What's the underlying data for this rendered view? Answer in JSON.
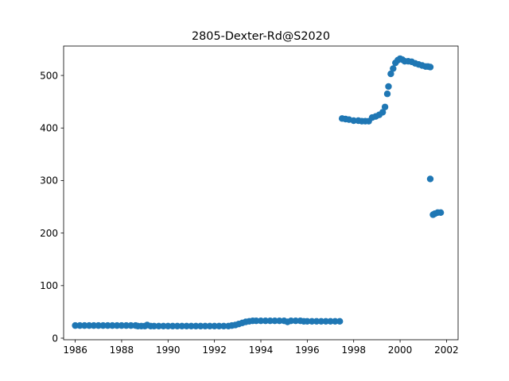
{
  "chart_data": {
    "type": "scatter",
    "title": "2805-Dexter-Rd@S2020",
    "xlabel": "",
    "ylabel": "",
    "xlim": [
      1985.5,
      2002.5
    ],
    "ylim": [
      -3,
      556
    ],
    "x_ticks": [
      "1986",
      "1988",
      "1990",
      "1992",
      "1994",
      "1996",
      "1998",
      "2000",
      "2002"
    ],
    "y_ticks": [
      "0",
      "100",
      "200",
      "300",
      "400",
      "500"
    ],
    "grid": false,
    "legend": "none",
    "marker_color": "#1f77b4",
    "series": [
      {
        "points": [
          [
            1986.0,
            24
          ],
          [
            1986.2,
            24
          ],
          [
            1986.4,
            24
          ],
          [
            1986.6,
            24
          ],
          [
            1986.8,
            24
          ],
          [
            1987.0,
            24
          ],
          [
            1987.2,
            24
          ],
          [
            1987.4,
            24
          ],
          [
            1987.6,
            24
          ],
          [
            1987.8,
            24
          ],
          [
            1988.0,
            24
          ],
          [
            1988.2,
            24
          ],
          [
            1988.4,
            24
          ],
          [
            1988.6,
            24
          ],
          [
            1988.7,
            23
          ],
          [
            1988.85,
            23
          ],
          [
            1989.0,
            23
          ],
          [
            1989.1,
            25
          ],
          [
            1989.25,
            23
          ],
          [
            1989.4,
            23
          ],
          [
            1989.6,
            23
          ],
          [
            1989.8,
            23
          ],
          [
            1990.0,
            23
          ],
          [
            1990.2,
            23
          ],
          [
            1990.4,
            23
          ],
          [
            1990.6,
            23
          ],
          [
            1990.8,
            23
          ],
          [
            1991.0,
            23
          ],
          [
            1991.2,
            23
          ],
          [
            1991.4,
            23
          ],
          [
            1991.6,
            23
          ],
          [
            1991.8,
            23
          ],
          [
            1992.0,
            23
          ],
          [
            1992.2,
            23
          ],
          [
            1992.4,
            23
          ],
          [
            1992.6,
            23
          ],
          [
            1992.75,
            24
          ],
          [
            1992.9,
            25
          ],
          [
            1993.05,
            27
          ],
          [
            1993.2,
            29
          ],
          [
            1993.35,
            31
          ],
          [
            1993.5,
            32
          ],
          [
            1993.65,
            33
          ],
          [
            1993.8,
            33
          ],
          [
            1994.0,
            33
          ],
          [
            1994.2,
            33
          ],
          [
            1994.4,
            33
          ],
          [
            1994.6,
            33
          ],
          [
            1994.8,
            33
          ],
          [
            1995.0,
            33
          ],
          [
            1995.15,
            31
          ],
          [
            1995.3,
            33
          ],
          [
            1995.5,
            33
          ],
          [
            1995.7,
            33
          ],
          [
            1995.85,
            32
          ],
          [
            1996.0,
            32
          ],
          [
            1996.2,
            32
          ],
          [
            1996.4,
            32
          ],
          [
            1996.6,
            32
          ],
          [
            1996.8,
            32
          ],
          [
            1997.0,
            32
          ],
          [
            1997.2,
            32
          ],
          [
            1997.4,
            32
          ],
          [
            1997.5,
            418
          ],
          [
            1997.65,
            417
          ],
          [
            1997.8,
            416
          ],
          [
            1998.0,
            414
          ],
          [
            1998.2,
            414
          ],
          [
            1998.35,
            413
          ],
          [
            1998.5,
            413
          ],
          [
            1998.65,
            413
          ],
          [
            1998.8,
            420
          ],
          [
            1998.95,
            422
          ],
          [
            1999.1,
            425
          ],
          [
            1999.25,
            430
          ],
          [
            1999.35,
            440
          ],
          [
            1999.45,
            465
          ],
          [
            1999.5,
            479
          ],
          [
            1999.6,
            503
          ],
          [
            1999.7,
            513
          ],
          [
            1999.8,
            524
          ],
          [
            1999.9,
            529
          ],
          [
            2000.0,
            532
          ],
          [
            2000.1,
            530
          ],
          [
            2000.2,
            527
          ],
          [
            2000.35,
            527
          ],
          [
            2000.5,
            526
          ],
          [
            2000.65,
            523
          ],
          [
            2000.8,
            521
          ],
          [
            2000.95,
            519
          ],
          [
            2001.1,
            517
          ],
          [
            2001.2,
            517
          ],
          [
            2001.3,
            516
          ],
          [
            2001.3,
            303
          ],
          [
            2001.42,
            235
          ],
          [
            2001.5,
            237
          ],
          [
            2001.62,
            239
          ],
          [
            2001.75,
            239
          ]
        ]
      }
    ]
  }
}
